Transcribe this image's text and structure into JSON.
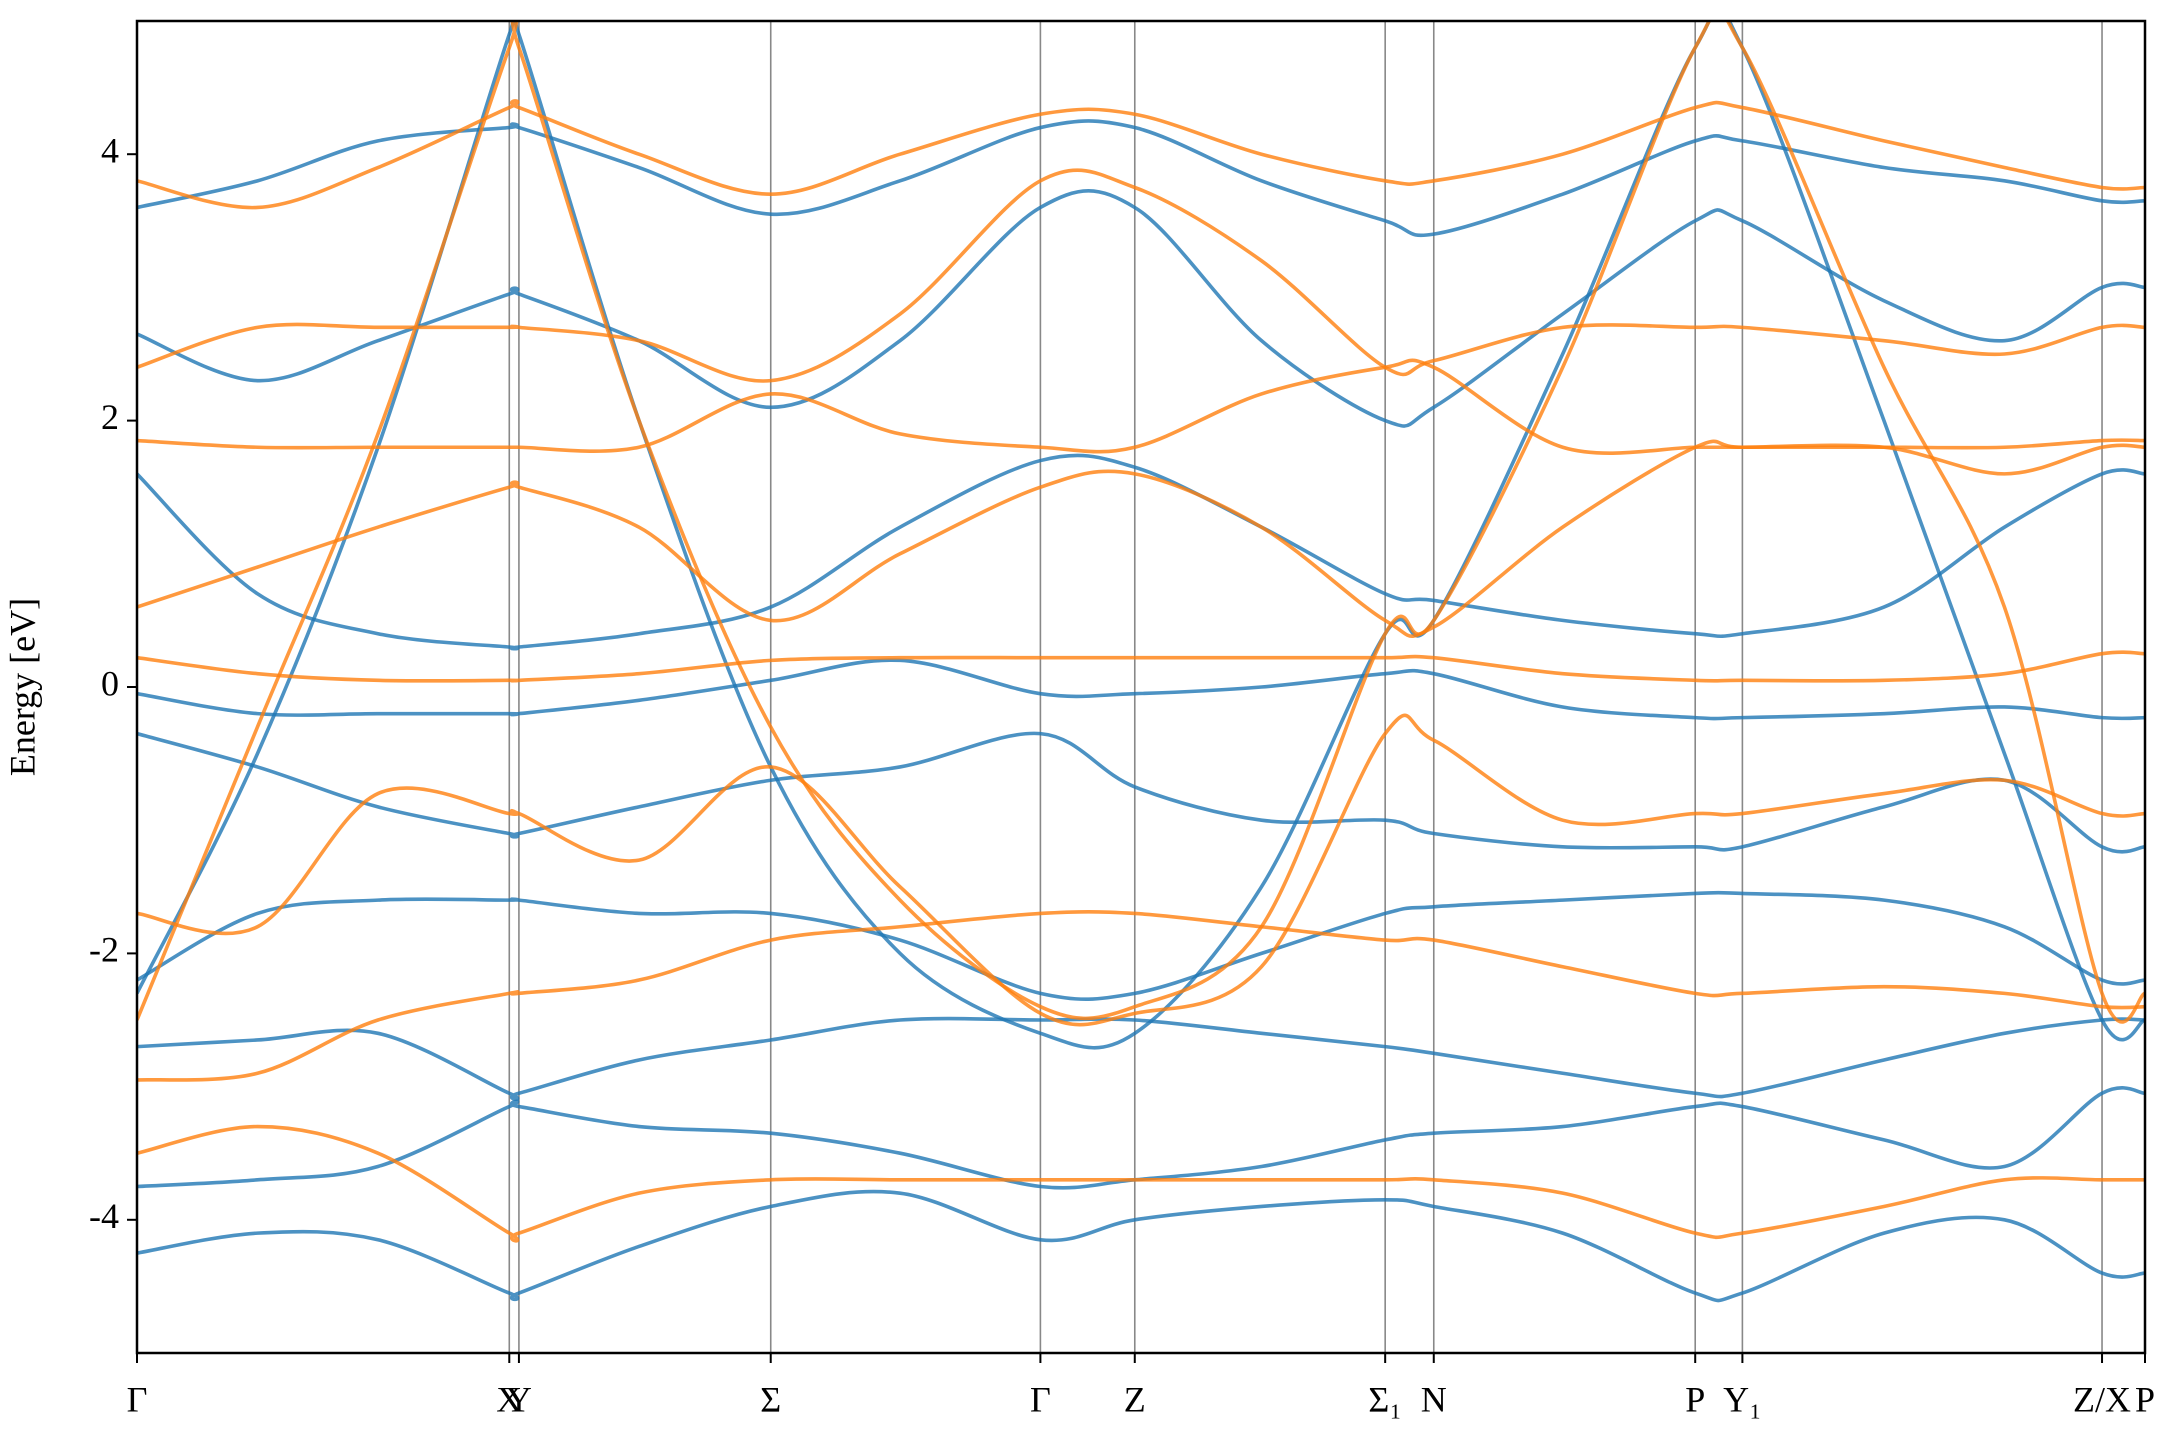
{
  "chart_data": {
    "type": "line",
    "ylabel": "Energy [eV]",
    "xlim": [
      0,
      1
    ],
    "ylim": [
      -5,
      5
    ],
    "yticks": [
      -4,
      -2,
      0,
      2,
      4
    ],
    "xticks": [
      {
        "value": 0,
        "label": "Γ"
      },
      {
        "value": 0.1854,
        "label": "X"
      },
      {
        "value": 0.1902,
        "label": "Y"
      },
      {
        "value": 0.3156,
        "label": "Σ"
      },
      {
        "value": 0.4499,
        "label": "Γ"
      },
      {
        "value": 0.4969,
        "label": "Z"
      },
      {
        "value": 0.6216,
        "label": "Σ₁"
      },
      {
        "value": 0.6458,
        "label": "N"
      },
      {
        "value": 0.776,
        "label": "P"
      },
      {
        "value": 0.7995,
        "label": "Y₁"
      },
      {
        "value": 0.9786,
        "label": "Z/X"
      },
      {
        "value": 1.0,
        "label": "P"
      }
    ],
    "xgrid": true,
    "x": [
      0,
      0.06,
      0.12,
      0.1854,
      0.1902,
      0.25,
      0.3156,
      0.38,
      0.4499,
      0.4969,
      0.56,
      0.6216,
      0.6458,
      0.71,
      0.776,
      0.7995,
      0.87,
      0.93,
      0.9786,
      1.0
    ],
    "series": [
      {
        "color": "#1f77b4",
        "values": [
          -4.25,
          -4.1,
          -4.15,
          -4.55,
          -4.55,
          -4.2,
          -3.9,
          -3.8,
          -4.15,
          -4.0,
          -3.9,
          -3.85,
          -3.9,
          -4.1,
          -4.55,
          -4.55,
          -4.1,
          -4.0,
          -4.4,
          -4.4
        ]
      },
      {
        "color": "#1f77b4",
        "values": [
          -3.75,
          -3.7,
          -3.6,
          -3.15,
          -3.15,
          -3.3,
          -3.35,
          -3.5,
          -3.75,
          -3.7,
          -3.6,
          -3.4,
          -3.35,
          -3.3,
          -3.15,
          -3.15,
          -3.4,
          -3.6,
          -3.05,
          -3.05
        ]
      },
      {
        "color": "#1f77b4",
        "values": [
          -2.7,
          -2.65,
          -2.6,
          -3.05,
          -3.05,
          -2.8,
          -2.65,
          -2.5,
          -2.5,
          -2.5,
          -2.6,
          -2.7,
          -2.75,
          -2.9,
          -3.05,
          -3.05,
          -2.8,
          -2.6,
          -2.5,
          -2.5
        ]
      },
      {
        "color": "#1f77b4",
        "values": [
          -2.2,
          -1.7,
          -1.6,
          -1.6,
          -1.6,
          -1.7,
          -1.7,
          -1.9,
          -2.3,
          -2.3,
          -2.0,
          -1.7,
          -1.65,
          -1.6,
          -1.55,
          -1.55,
          -1.6,
          -1.8,
          -2.2,
          -2.2
        ]
      },
      {
        "color": "#1f77b4",
        "values": [
          -0.35,
          -0.6,
          -0.9,
          -1.1,
          -1.1,
          -0.9,
          -0.7,
          -0.6,
          -0.35,
          -0.75,
          -1.0,
          -1.0,
          -1.1,
          -1.2,
          -1.2,
          -1.2,
          -0.9,
          -0.7,
          -1.2,
          -1.2
        ]
      },
      {
        "color": "#1f77b4",
        "values": [
          -0.05,
          -0.2,
          -0.2,
          -0.2,
          -0.2,
          -0.1,
          0.05,
          0.2,
          -0.05,
          -0.05,
          0.0,
          0.1,
          0.1,
          -0.15,
          -0.23,
          -0.23,
          -0.2,
          -0.15,
          -0.23,
          -0.23
        ]
      },
      {
        "color": "#1f77b4",
        "values": [
          1.6,
          0.7,
          0.4,
          0.3,
          0.3,
          0.4,
          0.6,
          1.2,
          1.7,
          1.65,
          1.2,
          0.7,
          0.65,
          0.5,
          0.4,
          0.4,
          0.6,
          1.2,
          1.6,
          1.6
        ]
      },
      {
        "color": "#1f77b4",
        "values": [
          2.65,
          2.3,
          2.6,
          2.95,
          2.95,
          2.6,
          2.1,
          2.6,
          3.6,
          3.6,
          2.6,
          2.0,
          2.1,
          2.8,
          3.5,
          3.5,
          2.9,
          2.6,
          3.0,
          3.0
        ]
      },
      {
        "color": "#1f77b4",
        "values": [
          3.6,
          3.8,
          4.1,
          4.2,
          4.2,
          3.9,
          3.55,
          3.8,
          4.2,
          4.2,
          3.8,
          3.5,
          3.4,
          3.7,
          4.1,
          4.1,
          3.9,
          3.8,
          3.65,
          3.65
        ]
      },
      {
        "color": "#1f77b4",
        "values": [
          -2.3,
          -0.5,
          1.8,
          4.9,
          4.9,
          2.0,
          -0.6,
          -2.0,
          -2.6,
          -2.6,
          -1.5,
          0.4,
          0.5,
          2.5,
          4.8,
          4.8,
          2.0,
          -0.5,
          -2.5,
          -2.5
        ]
      },
      {
        "color": "#ff7f0e",
        "values": [
          -3.5,
          -3.3,
          -3.5,
          -4.1,
          -4.1,
          -3.8,
          -3.7,
          -3.7,
          -3.7,
          -3.7,
          -3.7,
          -3.7,
          -3.7,
          -3.8,
          -4.1,
          -4.1,
          -3.9,
          -3.7,
          -3.7,
          -3.7
        ]
      },
      {
        "color": "#ff7f0e",
        "values": [
          -2.95,
          -2.9,
          -2.5,
          -2.3,
          -2.3,
          -2.2,
          -1.9,
          -1.8,
          -1.7,
          -1.7,
          -1.8,
          -1.9,
          -1.9,
          -2.1,
          -2.3,
          -2.3,
          -2.25,
          -2.3,
          -2.4,
          -2.4
        ]
      },
      {
        "color": "#ff7f0e",
        "values": [
          -1.7,
          -1.8,
          -0.8,
          -0.95,
          -0.95,
          -1.3,
          -0.6,
          -1.5,
          -2.45,
          -2.45,
          -2.1,
          -0.35,
          -0.4,
          -1.0,
          -0.95,
          -0.95,
          -0.8,
          -0.7,
          -0.95,
          -0.95
        ]
      },
      {
        "color": "#ff7f0e",
        "values": [
          0.22,
          0.1,
          0.05,
          0.05,
          0.05,
          0.1,
          0.2,
          0.22,
          0.22,
          0.22,
          0.22,
          0.22,
          0.22,
          0.1,
          0.05,
          0.05,
          0.05,
          0.1,
          0.25,
          0.25
        ]
      },
      {
        "color": "#ff7f0e",
        "values": [
          0.6,
          0.9,
          1.2,
          1.5,
          1.5,
          1.2,
          0.5,
          1.0,
          1.5,
          1.6,
          1.2,
          0.5,
          0.45,
          1.2,
          1.8,
          1.8,
          1.8,
          1.6,
          1.8,
          1.8
        ]
      },
      {
        "color": "#ff7f0e",
        "values": [
          1.85,
          1.8,
          1.8,
          1.8,
          1.8,
          1.8,
          2.2,
          1.9,
          1.8,
          1.8,
          2.2,
          2.4,
          2.4,
          1.8,
          1.8,
          1.8,
          1.8,
          1.8,
          1.85,
          1.85
        ]
      },
      {
        "color": "#ff7f0e",
        "values": [
          2.4,
          2.7,
          2.7,
          2.7,
          2.7,
          2.6,
          2.3,
          2.8,
          3.8,
          3.75,
          3.2,
          2.4,
          2.45,
          2.7,
          2.7,
          2.7,
          2.6,
          2.5,
          2.7,
          2.7
        ]
      },
      {
        "color": "#ff7f0e",
        "values": [
          3.8,
          3.6,
          3.9,
          4.35,
          4.35,
          4.0,
          3.7,
          4.0,
          4.3,
          4.3,
          4.0,
          3.8,
          3.8,
          4.0,
          4.35,
          4.35,
          4.1,
          3.9,
          3.75,
          3.75
        ]
      },
      {
        "color": "#ff7f0e",
        "values": [
          -2.5,
          -0.3,
          1.9,
          4.8,
          4.8,
          2.0,
          -0.3,
          -1.6,
          -2.4,
          -2.4,
          -1.8,
          0.4,
          0.5,
          2.4,
          4.8,
          4.8,
          2.4,
          0.6,
          -2.3,
          -2.3
        ]
      }
    ]
  }
}
